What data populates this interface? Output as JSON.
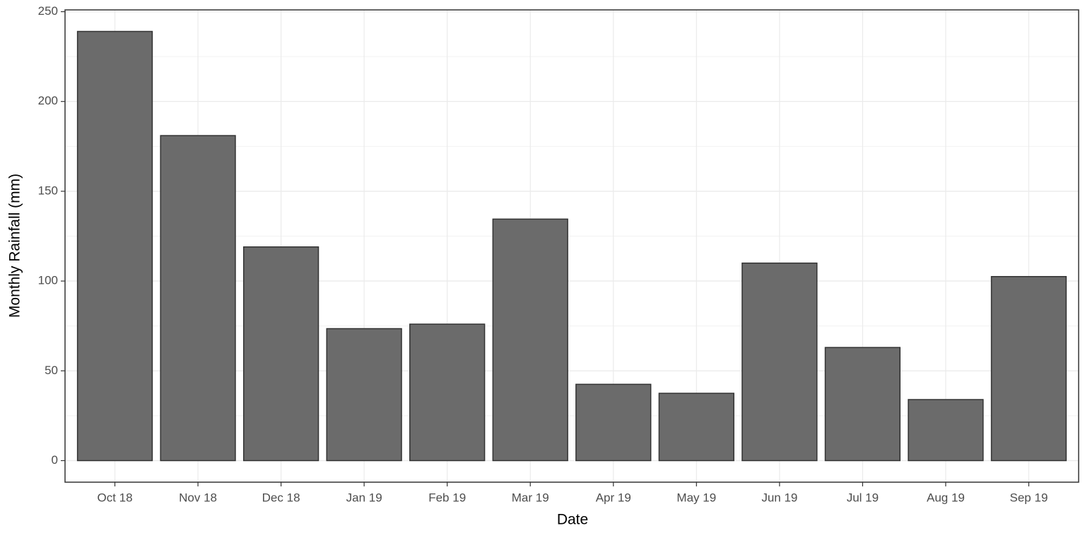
{
  "chart_data": {
    "type": "bar",
    "x_label": "Date",
    "y_label": "Monthly Rainfall (mm)",
    "categories": [
      "Oct 18",
      "Nov 18",
      "Dec 18",
      "Jan 19",
      "Feb 19",
      "Mar 19",
      "Apr 19",
      "May 19",
      "Jun 19",
      "Jul 19",
      "Aug 19",
      "Sep 19"
    ],
    "values": [
      239,
      181,
      119,
      73.5,
      76,
      134.5,
      42.5,
      37.5,
      110,
      63,
      34,
      102.5
    ],
    "color": "#6b6b6b",
    "ylim": [
      -12,
      251
    ],
    "yticks": [
      0,
      50,
      100,
      150,
      200,
      250
    ],
    "grid": true
  }
}
